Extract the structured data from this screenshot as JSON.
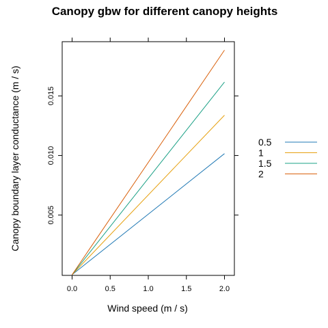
{
  "chart_data": {
    "type": "line",
    "title": "Canopy gbw for different canopy heights",
    "xlabel": "Wind speed (m / s)",
    "ylabel": "Canopy boundary layer conductance (m / s)",
    "xlim": [
      -0.13,
      2.13
    ],
    "ylim": [
      -6e-05,
      0.01955
    ],
    "x_ticks": [
      "0.0",
      "0.5",
      "1.0",
      "1.5",
      "2.0"
    ],
    "y_ticks": [
      "0.005",
      "0.010",
      "0.015"
    ],
    "legend_position": "right",
    "series": [
      {
        "name": "0.5",
        "color": "#1f78b4",
        "x": [
          0,
          2.0
        ],
        "y": [
          0,
          0.01016
        ]
      },
      {
        "name": "1",
        "color": "#e6a00e",
        "x": [
          0,
          2.0
        ],
        "y": [
          0,
          0.01338
        ]
      },
      {
        "name": "1.5",
        "color": "#1aa085",
        "x": [
          0,
          2.0
        ],
        "y": [
          0,
          0.01616
        ]
      },
      {
        "name": "2",
        "color": "#d9600b",
        "x": [
          0,
          2.0
        ],
        "y": [
          0,
          0.01884
        ]
      }
    ]
  }
}
